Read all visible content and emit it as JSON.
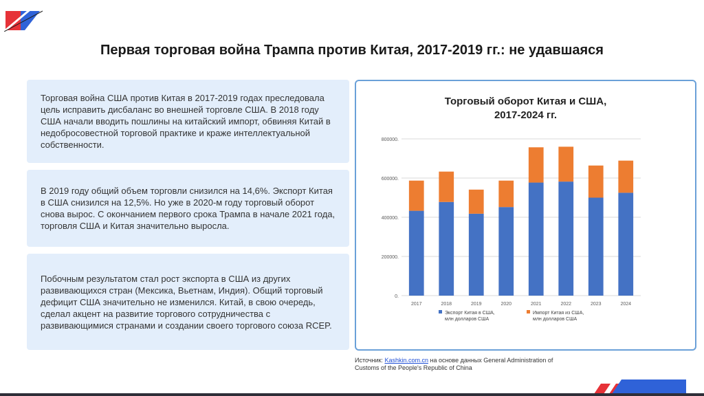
{
  "slide": {
    "title": "Первая торговая война Трампа против Китая, 2017-2019 гг.: не удавшаяся",
    "paragraphs": [
      "Торговая война США против Китая в 2017-2019 годах преследовала цель исправить дисбаланс во внешней торговле США. В 2018 году США начали вводить пошлины на китайский импорт, обвиняя Китай в недобросовестной торговой практике и краже интеллектуальной собственности.",
      "В 2019 году общий объем торговли снизился на 14,6%. Экспорт Китая в США снизился на 12,5%. Но уже в 2020-м году торговый оборот снова вырос. С окончанием первого срока Трампа в начале 2021 года, торговля США и Китая значительно выросла.",
      "Побочным результатом стал рост экспорта в США из других развивающихся стран (Мексика, Вьетнам, Индия). Общий торговый дефицит США значительно не изменился. Китай, в свою очередь, сделал акцент на развитие торгового сотрудничества с развивающимися странами и создании своего торгового союза RCEP."
    ],
    "source_prefix": "Источник: ",
    "source_link": "Kashkin.com.cn",
    "source_suffix": " на основе данных General Administration of Customs of the People's Republic of China"
  },
  "colors": {
    "export": "#4472c4",
    "import": "#ed7d31",
    "accent_red": "#e63238",
    "accent_blue": "#2f62d8",
    "border": "#6aa0d8"
  },
  "chart_data": {
    "type": "bar",
    "stacked": true,
    "title": "Торговый оборот Китая и США,\n2017-2024 гг.",
    "categories": [
      "2017",
      "2018",
      "2019",
      "2020",
      "2021",
      "2022",
      "2023",
      "2024"
    ],
    "series": [
      {
        "name": "Экспорт Китая в США, млн долларов США",
        "values": [
          433000,
          478000,
          418000,
          452000,
          577000,
          582000,
          500000,
          525000
        ]
      },
      {
        "name": "Импорт Китая из США, млн долларов США",
        "values": [
          154000,
          155000,
          123000,
          135000,
          180000,
          178000,
          164000,
          164000
        ]
      }
    ],
    "ylim": [
      0,
      800000
    ],
    "yticks": [
      0,
      200000,
      400000,
      600000,
      800000
    ],
    "ytick_labels": [
      "0.",
      "200000.",
      "400000.",
      "600000.",
      "800000."
    ],
    "legend_position": "bottom",
    "grid": true
  }
}
